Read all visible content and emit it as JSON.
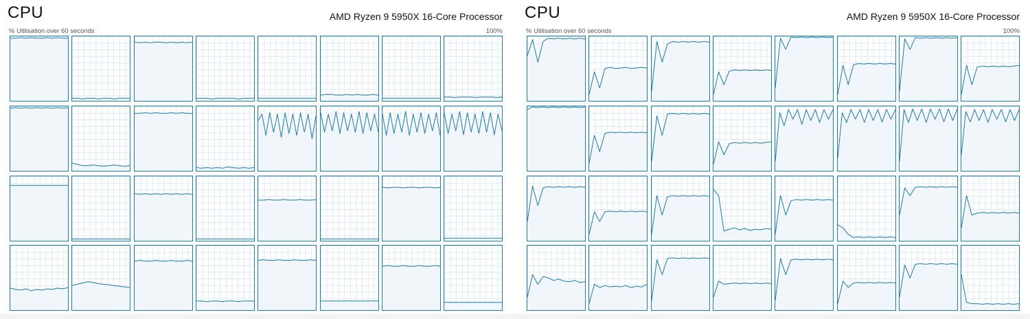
{
  "left_panel": {
    "title": "CPU",
    "processor": "AMD Ryzen 9 5950X 16-Core Processor",
    "sublabel": "% Utilisation over 60 seconds",
    "max_label": "100%",
    "cores": [
      {
        "usage_pct": [
          97,
          97,
          98,
          97,
          98,
          97,
          97,
          98,
          97,
          98,
          97,
          97
        ]
      },
      {
        "usage_pct": [
          4,
          4,
          3,
          4,
          4,
          3,
          4,
          4,
          3,
          4,
          4,
          4
        ]
      },
      {
        "usage_pct": [
          91,
          90,
          91,
          90,
          91,
          91,
          90,
          91,
          90,
          91,
          90,
          91
        ]
      },
      {
        "usage_pct": [
          4,
          4,
          4,
          3,
          4,
          4,
          4,
          4,
          3,
          4,
          4,
          4
        ]
      },
      {
        "usage_pct": [
          4,
          4,
          4,
          4,
          4,
          4,
          4,
          4,
          4,
          4,
          4,
          4
        ]
      },
      {
        "usage_pct": [
          9,
          10,
          10,
          9,
          9,
          10,
          9,
          10,
          9,
          9,
          10,
          9
        ]
      },
      {
        "usage_pct": [
          4,
          4,
          4,
          4,
          4,
          4,
          4,
          4,
          4,
          4,
          4,
          4
        ]
      },
      {
        "usage_pct": [
          6,
          6,
          5,
          6,
          6,
          6,
          5,
          6,
          6,
          6,
          5,
          6
        ]
      },
      {
        "usage_pct": [
          97,
          98,
          97,
          98,
          97,
          98,
          97,
          98,
          97,
          98,
          97,
          98
        ]
      },
      {
        "usage_pct": [
          12,
          10,
          8,
          8,
          9,
          8,
          7,
          8,
          9,
          8,
          7,
          8
        ]
      },
      {
        "usage_pct": [
          89,
          89,
          90,
          89,
          90,
          89,
          89,
          90,
          89,
          90,
          89,
          89
        ]
      },
      {
        "usage_pct": [
          5,
          4,
          5,
          4,
          5,
          4,
          6,
          5,
          4,
          5,
          4,
          5
        ]
      },
      {
        "usage_pct": [
          78,
          88,
          55,
          90,
          60,
          88,
          52,
          90,
          58,
          88,
          55,
          90,
          60,
          88,
          50,
          85
        ]
      },
      {
        "usage_pct": [
          90,
          60,
          88,
          62,
          92,
          58,
          90,
          62,
          88,
          60,
          92,
          58,
          90,
          62,
          88,
          60
        ]
      },
      {
        "usage_pct": [
          88,
          55,
          90,
          58,
          88,
          60,
          92,
          55,
          88,
          60,
          90,
          58,
          88,
          62,
          90,
          55
        ]
      },
      {
        "usage_pct": [
          90,
          58,
          88,
          62,
          92,
          56,
          90,
          60,
          88,
          58,
          92,
          60,
          90,
          56,
          88,
          62
        ]
      },
      {
        "usage_pct": [
          86,
          86,
          86,
          86,
          86,
          86,
          86,
          86,
          86,
          86,
          86,
          86
        ]
      },
      {
        "usage_pct": [
          3,
          3,
          3,
          3,
          3,
          3,
          3,
          3,
          3,
          3,
          3,
          3
        ]
      },
      {
        "usage_pct": [
          73,
          72,
          73,
          72,
          73,
          72,
          73,
          72,
          73,
          72,
          73,
          72
        ]
      },
      {
        "usage_pct": [
          3,
          3,
          3,
          3,
          3,
          3,
          3,
          3,
          3,
          3,
          3,
          3
        ]
      },
      {
        "usage_pct": [
          63,
          63,
          64,
          63,
          63,
          64,
          63,
          63,
          64,
          63,
          63,
          64
        ]
      },
      {
        "usage_pct": [
          3,
          3,
          3,
          3,
          3,
          3,
          3,
          3,
          3,
          3,
          3,
          3
        ]
      },
      {
        "usage_pct": [
          83,
          82,
          83,
          83,
          82,
          83,
          83,
          82,
          83,
          83,
          82,
          83
        ]
      },
      {
        "usage_pct": [
          4,
          4,
          4,
          4,
          4,
          4,
          4,
          4,
          4,
          4,
          4,
          4
        ]
      },
      {
        "usage_pct": [
          34,
          32,
          31,
          33,
          30,
          32,
          31,
          33,
          32,
          34,
          33,
          35
        ]
      },
      {
        "usage_pct": [
          38,
          40,
          42,
          44,
          43,
          41,
          40,
          39,
          38,
          37,
          36,
          35
        ]
      },
      {
        "usage_pct": [
          76,
          77,
          76,
          76,
          77,
          76,
          76,
          77,
          76,
          76,
          77,
          76
        ]
      },
      {
        "usage_pct": [
          14,
          14,
          13,
          14,
          14,
          13,
          14,
          14,
          13,
          14,
          14,
          14
        ]
      },
      {
        "usage_pct": [
          77,
          78,
          77,
          77,
          78,
          77,
          77,
          78,
          77,
          77,
          78,
          77
        ]
      },
      {
        "usage_pct": [
          14,
          14,
          14,
          14,
          14,
          14,
          14,
          14,
          14,
          14,
          14,
          14
        ]
      },
      {
        "usage_pct": [
          68,
          69,
          68,
          68,
          69,
          68,
          68,
          69,
          68,
          68,
          69,
          68
        ]
      },
      {
        "usage_pct": [
          12,
          12,
          12,
          12,
          12,
          12,
          12,
          12,
          12,
          12,
          12,
          12
        ]
      }
    ]
  },
  "right_panel": {
    "title": "CPU",
    "processor": "AMD Ryzen 9 5950X 16-Core Processor",
    "sublabel": "% Utilisation over 60 seconds",
    "max_label": "100%",
    "cores": [
      {
        "usage_pct": [
          70,
          95,
          60,
          92,
          97,
          96,
          97,
          96,
          97,
          96,
          97,
          96
        ]
      },
      {
        "usage_pct": [
          10,
          45,
          20,
          50,
          52,
          50,
          51,
          52,
          50,
          51,
          52,
          51
        ]
      },
      {
        "usage_pct": [
          15,
          92,
          60,
          88,
          92,
          91,
          92,
          91,
          92,
          91,
          92,
          91
        ]
      },
      {
        "usage_pct": [
          10,
          45,
          25,
          46,
          48,
          47,
          48,
          47,
          48,
          47,
          48,
          47
        ]
      },
      {
        "usage_pct": [
          20,
          97,
          80,
          99,
          98,
          99,
          98,
          99,
          98,
          99,
          98,
          99
        ]
      },
      {
        "usage_pct": [
          10,
          55,
          25,
          56,
          58,
          57,
          58,
          57,
          58,
          57,
          58,
          57
        ]
      },
      {
        "usage_pct": [
          15,
          96,
          80,
          98,
          97,
          98,
          97,
          98,
          97,
          98,
          97,
          98
        ]
      },
      {
        "usage_pct": [
          10,
          55,
          25,
          52,
          54,
          53,
          54,
          53,
          54,
          53,
          54,
          55
        ]
      },
      {
        "usage_pct": [
          95,
          99,
          98,
          99,
          98,
          99,
          98,
          99,
          98,
          99,
          98,
          99
        ]
      },
      {
        "usage_pct": [
          12,
          55,
          30,
          58,
          60,
          59,
          60,
          59,
          60,
          59,
          60,
          59
        ]
      },
      {
        "usage_pct": [
          15,
          85,
          55,
          88,
          89,
          88,
          89,
          88,
          89,
          88,
          89,
          88
        ]
      },
      {
        "usage_pct": [
          10,
          45,
          25,
          42,
          44,
          43,
          44,
          43,
          44,
          43,
          44,
          45
        ]
      },
      {
        "usage_pct": [
          15,
          90,
          70,
          95,
          80,
          95,
          72,
          95,
          78,
          95,
          75,
          95,
          80,
          95
        ]
      },
      {
        "usage_pct": [
          20,
          90,
          75,
          95,
          80,
          95,
          75,
          95,
          78,
          95,
          76,
          95,
          80,
          95
        ]
      },
      {
        "usage_pct": [
          15,
          95,
          75,
          96,
          78,
          96,
          75,
          96,
          80,
          96,
          76,
          96,
          78,
          96
        ]
      },
      {
        "usage_pct": [
          25,
          92,
          76,
          95,
          78,
          95,
          75,
          95,
          80,
          95,
          76,
          95,
          78,
          95
        ]
      },
      {
        "usage_pct": [
          30,
          85,
          55,
          82,
          84,
          83,
          84,
          83,
          84,
          83,
          84,
          83
        ]
      },
      {
        "usage_pct": [
          10,
          45,
          30,
          45,
          46,
          45,
          46,
          45,
          46,
          45,
          46,
          45
        ]
      },
      {
        "usage_pct": [
          10,
          70,
          40,
          68,
          70,
          69,
          70,
          69,
          70,
          69,
          70,
          69
        ]
      },
      {
        "usage_pct": [
          80,
          70,
          15,
          18,
          20,
          17,
          19,
          16,
          18,
          17,
          19,
          18
        ]
      },
      {
        "usage_pct": [
          10,
          70,
          40,
          62,
          64,
          63,
          64,
          63,
          64,
          63,
          64,
          63
        ]
      },
      {
        "usage_pct": [
          25,
          20,
          10,
          5,
          6,
          5,
          6,
          5,
          6,
          5,
          6,
          5
        ]
      },
      {
        "usage_pct": [
          40,
          82,
          70,
          83,
          84,
          83,
          84,
          83,
          84,
          83,
          84,
          83
        ]
      },
      {
        "usage_pct": [
          20,
          70,
          40,
          43,
          44,
          43,
          44,
          43,
          44,
          43,
          44,
          43
        ]
      },
      {
        "usage_pct": [
          20,
          55,
          40,
          52,
          50,
          46,
          48,
          45,
          44,
          46,
          43,
          44
        ]
      },
      {
        "usage_pct": [
          10,
          40,
          35,
          38,
          36,
          37,
          36,
          38,
          35,
          37,
          36,
          40
        ]
      },
      {
        "usage_pct": [
          15,
          78,
          55,
          80,
          81,
          80,
          81,
          80,
          81,
          80,
          81,
          80
        ]
      },
      {
        "usage_pct": [
          20,
          45,
          40,
          41,
          42,
          41,
          42,
          41,
          42,
          41,
          42,
          41
        ]
      },
      {
        "usage_pct": [
          15,
          80,
          55,
          78,
          79,
          78,
          79,
          78,
          79,
          78,
          79,
          78
        ]
      },
      {
        "usage_pct": [
          10,
          45,
          35,
          42,
          43,
          42,
          43,
          42,
          43,
          42,
          43,
          42
        ]
      },
      {
        "usage_pct": [
          20,
          70,
          50,
          71,
          72,
          71,
          72,
          71,
          72,
          71,
          72,
          71
        ]
      },
      {
        "usage_pct": [
          55,
          12,
          10,
          10,
          9,
          10,
          9,
          10,
          9,
          10,
          9,
          10
        ]
      }
    ]
  }
}
